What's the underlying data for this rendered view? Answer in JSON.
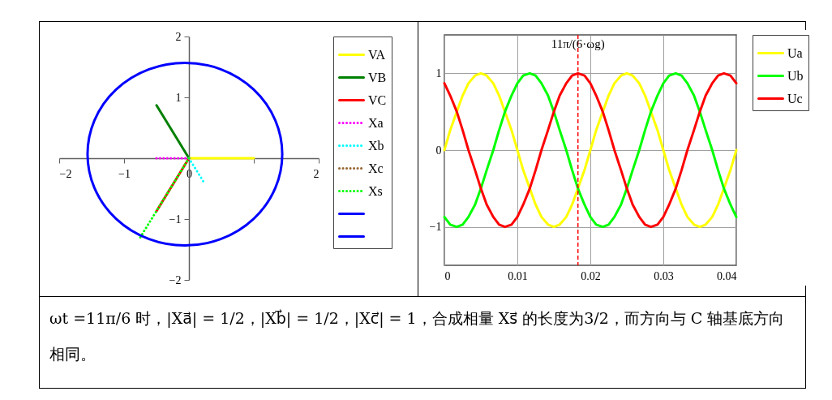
{
  "chart_data": [
    {
      "type": "line",
      "xlim": [
        -2,
        2
      ],
      "ylim": [
        -2,
        2
      ],
      "xticks": [
        -2,
        -1,
        0,
        {
          "value": 1,
          "label": null
        },
        2
      ],
      "yticks": [
        -2,
        -1,
        1,
        2
      ],
      "legend": "top right",
      "series": [
        {
          "name": "VA",
          "color": "#ffff00",
          "line_style": "solid",
          "x": [
            0,
            1
          ],
          "values": [
            0,
            0
          ]
        },
        {
          "name": "VB",
          "color": "#008000",
          "line_style": "solid",
          "x": [
            0,
            -0.5
          ],
          "values": [
            0,
            0.87
          ]
        },
        {
          "name": "VC",
          "color": "#ff0000",
          "line_style": "solid",
          "x": [
            0,
            -0.5
          ],
          "values": [
            0,
            -0.87
          ]
        },
        {
          "name": "Xa",
          "color": "#ff00ff",
          "line_style": "dotted",
          "x": [
            0,
            -0.5
          ],
          "values": [
            0,
            0
          ]
        },
        {
          "name": "Xb",
          "color": "#00ffff",
          "line_style": "dotted",
          "x": [
            0,
            0.25
          ],
          "values": [
            0,
            -0.43
          ]
        },
        {
          "name": "Xc",
          "color": "#996633",
          "line_style": "dotted",
          "values": [
            null,
            null
          ]
        },
        {
          "name": "Xs",
          "color": "#00ff00",
          "line_style": "dotted",
          "x": [
            0,
            -0.75
          ],
          "values": [
            0,
            -1.3
          ]
        },
        {
          "color": "#0000ff",
          "line_style": "solid",
          "values": [
            null
          ]
        },
        {
          "color": "#0000ff",
          "line_style": "solid",
          "values": [
            null
          ]
        }
      ]
    },
    {
      "type": "line",
      "xlim": [
        0,
        0.04
      ],
      "ylim": [
        -1.5,
        1.5
      ],
      "xticks": [
        0,
        0.01,
        0.02,
        0.03,
        0.04
      ],
      "yticks": [
        -1,
        0,
        1
      ],
      "grid": true,
      "legend": "top right",
      "line_style": "solid",
      "x": [
        0,
        0.0008,
        0.0017,
        0.0025,
        0.0033,
        0.0042,
        0.005,
        0.0058,
        0.0067,
        0.0075,
        0.0083,
        0.0092,
        0.01,
        0.0108,
        0.0117,
        0.0125,
        0.0133,
        0.0142,
        0.015,
        0.0158,
        0.0167,
        0.0175,
        0.0183,
        0.0192,
        0.02,
        0.0208,
        0.0217,
        0.0225,
        0.0233,
        0.0242,
        0.025,
        0.0258,
        0.0267,
        0.0275,
        0.0283,
        0.0292,
        0.03,
        0.0308,
        0.0317,
        0.0325,
        0.0333,
        0.0342,
        0.035,
        0.0358,
        0.0367,
        0.0375,
        0.0383,
        0.0392,
        0.04
      ],
      "series": [
        {
          "name": "Ua",
          "color": "#ffff00",
          "values": [
            0,
            0.26,
            0.5,
            0.71,
            0.87,
            0.97,
            1,
            0.97,
            0.87,
            0.71,
            0.5,
            0.26,
            0,
            -0.26,
            -0.5,
            -0.71,
            -0.87,
            -0.97,
            -1,
            -0.97,
            -0.87,
            -0.71,
            -0.5,
            -0.26,
            0,
            0.26,
            0.5,
            0.71,
            0.87,
            0.97,
            1,
            0.97,
            0.87,
            0.71,
            0.5,
            0.26,
            0,
            -0.26,
            -0.5,
            -0.71,
            -0.87,
            -0.97,
            -1,
            -0.97,
            -0.87,
            -0.71,
            -0.5,
            -0.26,
            0
          ]
        },
        {
          "name": "Ub",
          "color": "#00ff00",
          "values": [
            -0.87,
            -0.97,
            -1,
            -0.97,
            -0.87,
            -0.71,
            -0.5,
            -0.26,
            0,
            0.26,
            0.5,
            0.71,
            0.87,
            0.97,
            1,
            0.97,
            0.87,
            0.71,
            0.5,
            0.26,
            0,
            -0.26,
            -0.5,
            -0.71,
            -0.87,
            -0.97,
            -1,
            -0.97,
            -0.87,
            -0.71,
            -0.5,
            -0.26,
            0,
            0.26,
            0.5,
            0.71,
            0.87,
            0.97,
            1,
            0.97,
            0.87,
            0.71,
            0.5,
            0.26,
            0,
            -0.26,
            -0.5,
            -0.71,
            -0.87
          ]
        },
        {
          "name": "Uc",
          "color": "#ff0000",
          "values": [
            0.87,
            0.71,
            0.5,
            0.26,
            0,
            -0.26,
            -0.5,
            -0.71,
            -0.87,
            -0.97,
            -1,
            -0.97,
            -0.87,
            -0.71,
            -0.5,
            -0.26,
            0,
            0.26,
            0.5,
            0.71,
            0.87,
            0.97,
            1,
            0.97,
            0.87,
            0.71,
            0.5,
            0.26,
            0,
            -0.26,
            -0.5,
            -0.71,
            -0.87,
            -0.97,
            -1,
            -0.97,
            -0.87,
            -0.71,
            -0.5,
            -0.26,
            0,
            0.26,
            0.5,
            0.71,
            0.87,
            0.97,
            1,
            0.97,
            0.87
          ]
        }
      ],
      "ref_lines": [
        {
          "axis": "x",
          "value": 0.0183,
          "label": "11π/(6·ωg)",
          "color": "#ff0000",
          "line_style": "dashed"
        }
      ]
    },
    {
      "type": "other",
      "annotations": [
        "ωt =11π/6 时，|Xa⃗| = 1/2，|Xb⃗| = 1/2，|Xc⃗| = 1，合成相量 Xs⃗ 的长度为3/2，而方向与 C 轴基底方向相同。"
      ]
    }
  ]
}
